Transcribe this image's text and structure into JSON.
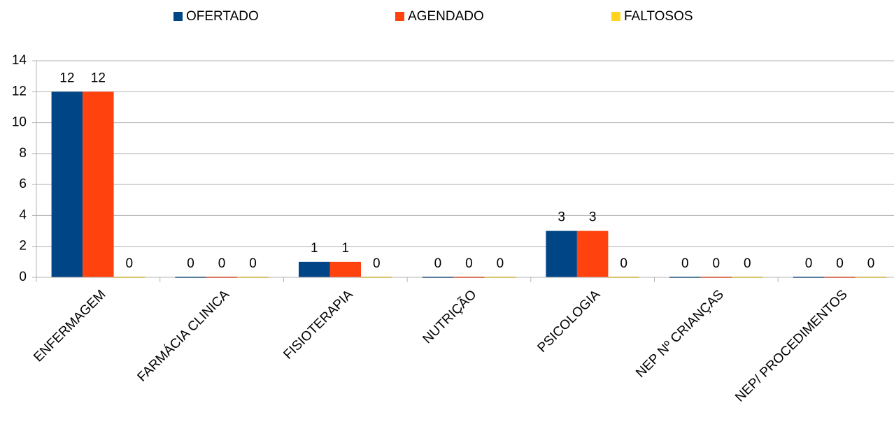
{
  "chart_data": {
    "type": "bar",
    "categories": [
      "ENFERMAGEM",
      "FARMÁCIA CLINICA",
      "FISIOTERAPIA",
      "NUTRIÇÃO",
      "PSICOLOGIA",
      "NEP Nº CRIANÇAS",
      "NEP/ PROCEDIMENTOS"
    ],
    "series": [
      {
        "name": "OFERTADO",
        "color": "#004586",
        "values": [
          12,
          0,
          1,
          0,
          3,
          0,
          0
        ]
      },
      {
        "name": "AGENDADO",
        "color": "#ff420e",
        "values": [
          12,
          0,
          1,
          0,
          3,
          0,
          0
        ]
      },
      {
        "name": "FALTOSOS",
        "color": "#ffd320",
        "values": [
          0,
          0,
          0,
          0,
          0,
          0,
          0
        ]
      }
    ],
    "ylim": [
      0,
      14
    ],
    "yticks": [
      0,
      2,
      4,
      6,
      8,
      10,
      12,
      14
    ],
    "grid": true,
    "legend": "top"
  }
}
